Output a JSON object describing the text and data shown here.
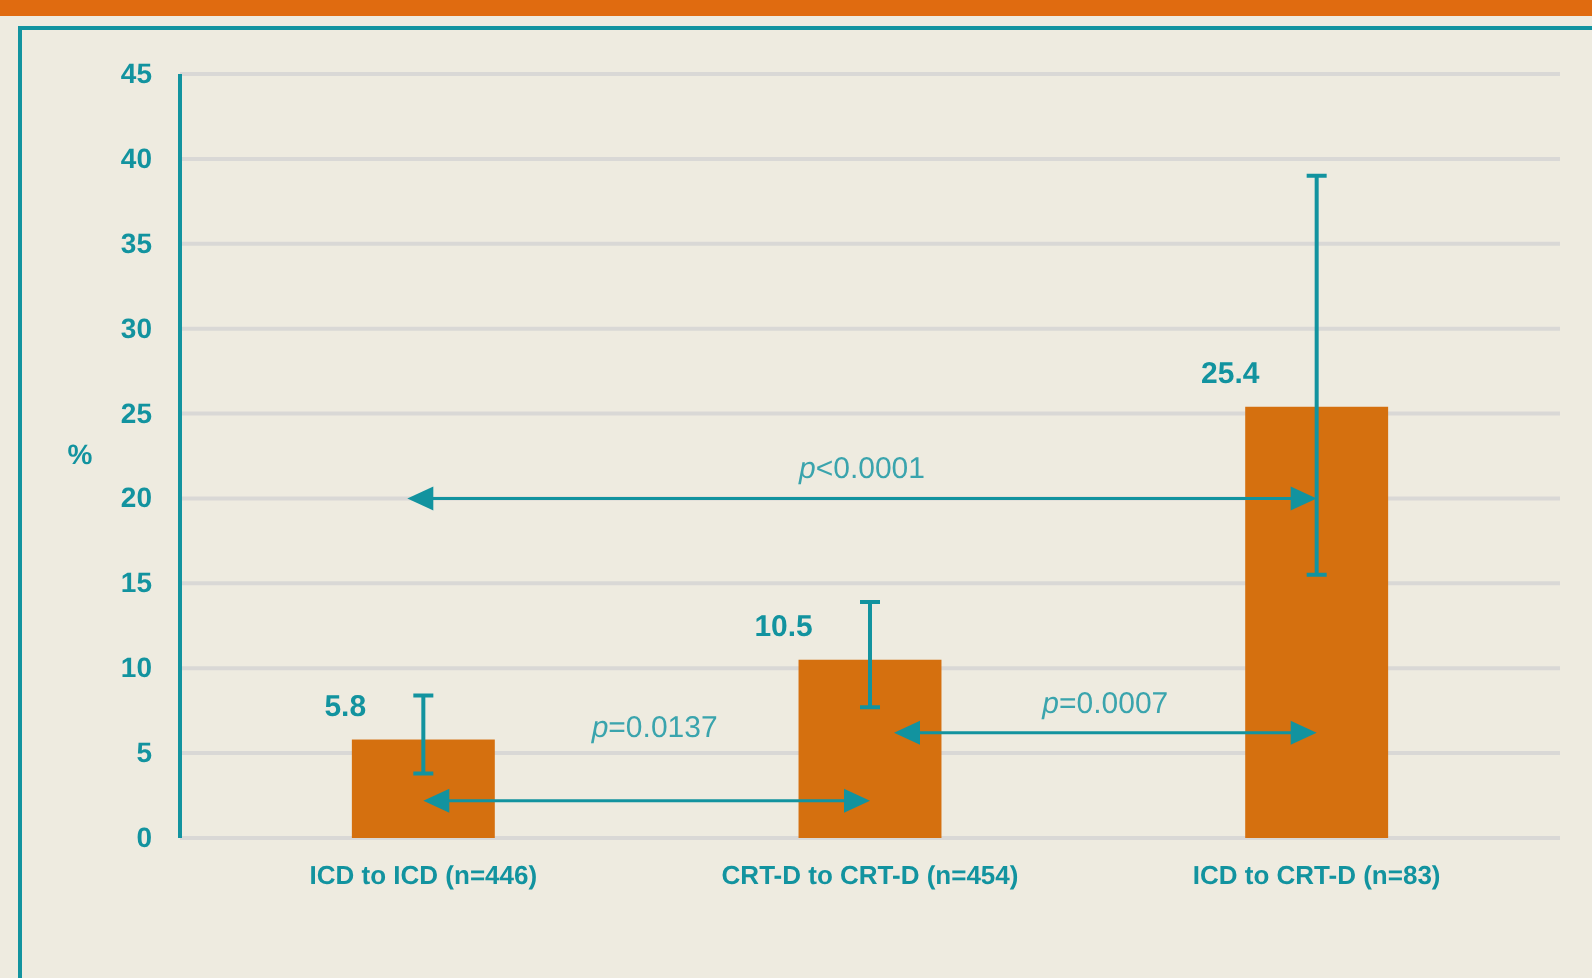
{
  "chart_data": {
    "type": "bar",
    "categories": [
      "ICD to ICD (n=446)",
      "CRT-D to CRT-D (n=454)",
      "ICD to CRT-D (n=83)"
    ],
    "values": [
      5.8,
      10.5,
      25.4
    ],
    "color": "#d5700f",
    "data_labels": true,
    "errors": [
      [
        3.8,
        8.4
      ],
      [
        7.7,
        13.9
      ],
      [
        15.5,
        39.0
      ]
    ],
    "ylabel": "%",
    "ylim": [
      0,
      45
    ],
    "yticks": [
      0,
      5,
      10,
      15,
      20,
      25,
      30,
      35,
      40,
      45
    ],
    "grid": "y",
    "annotations": [
      "p<0.0001",
      "p=0.0137",
      "p=0.0007"
    ]
  }
}
